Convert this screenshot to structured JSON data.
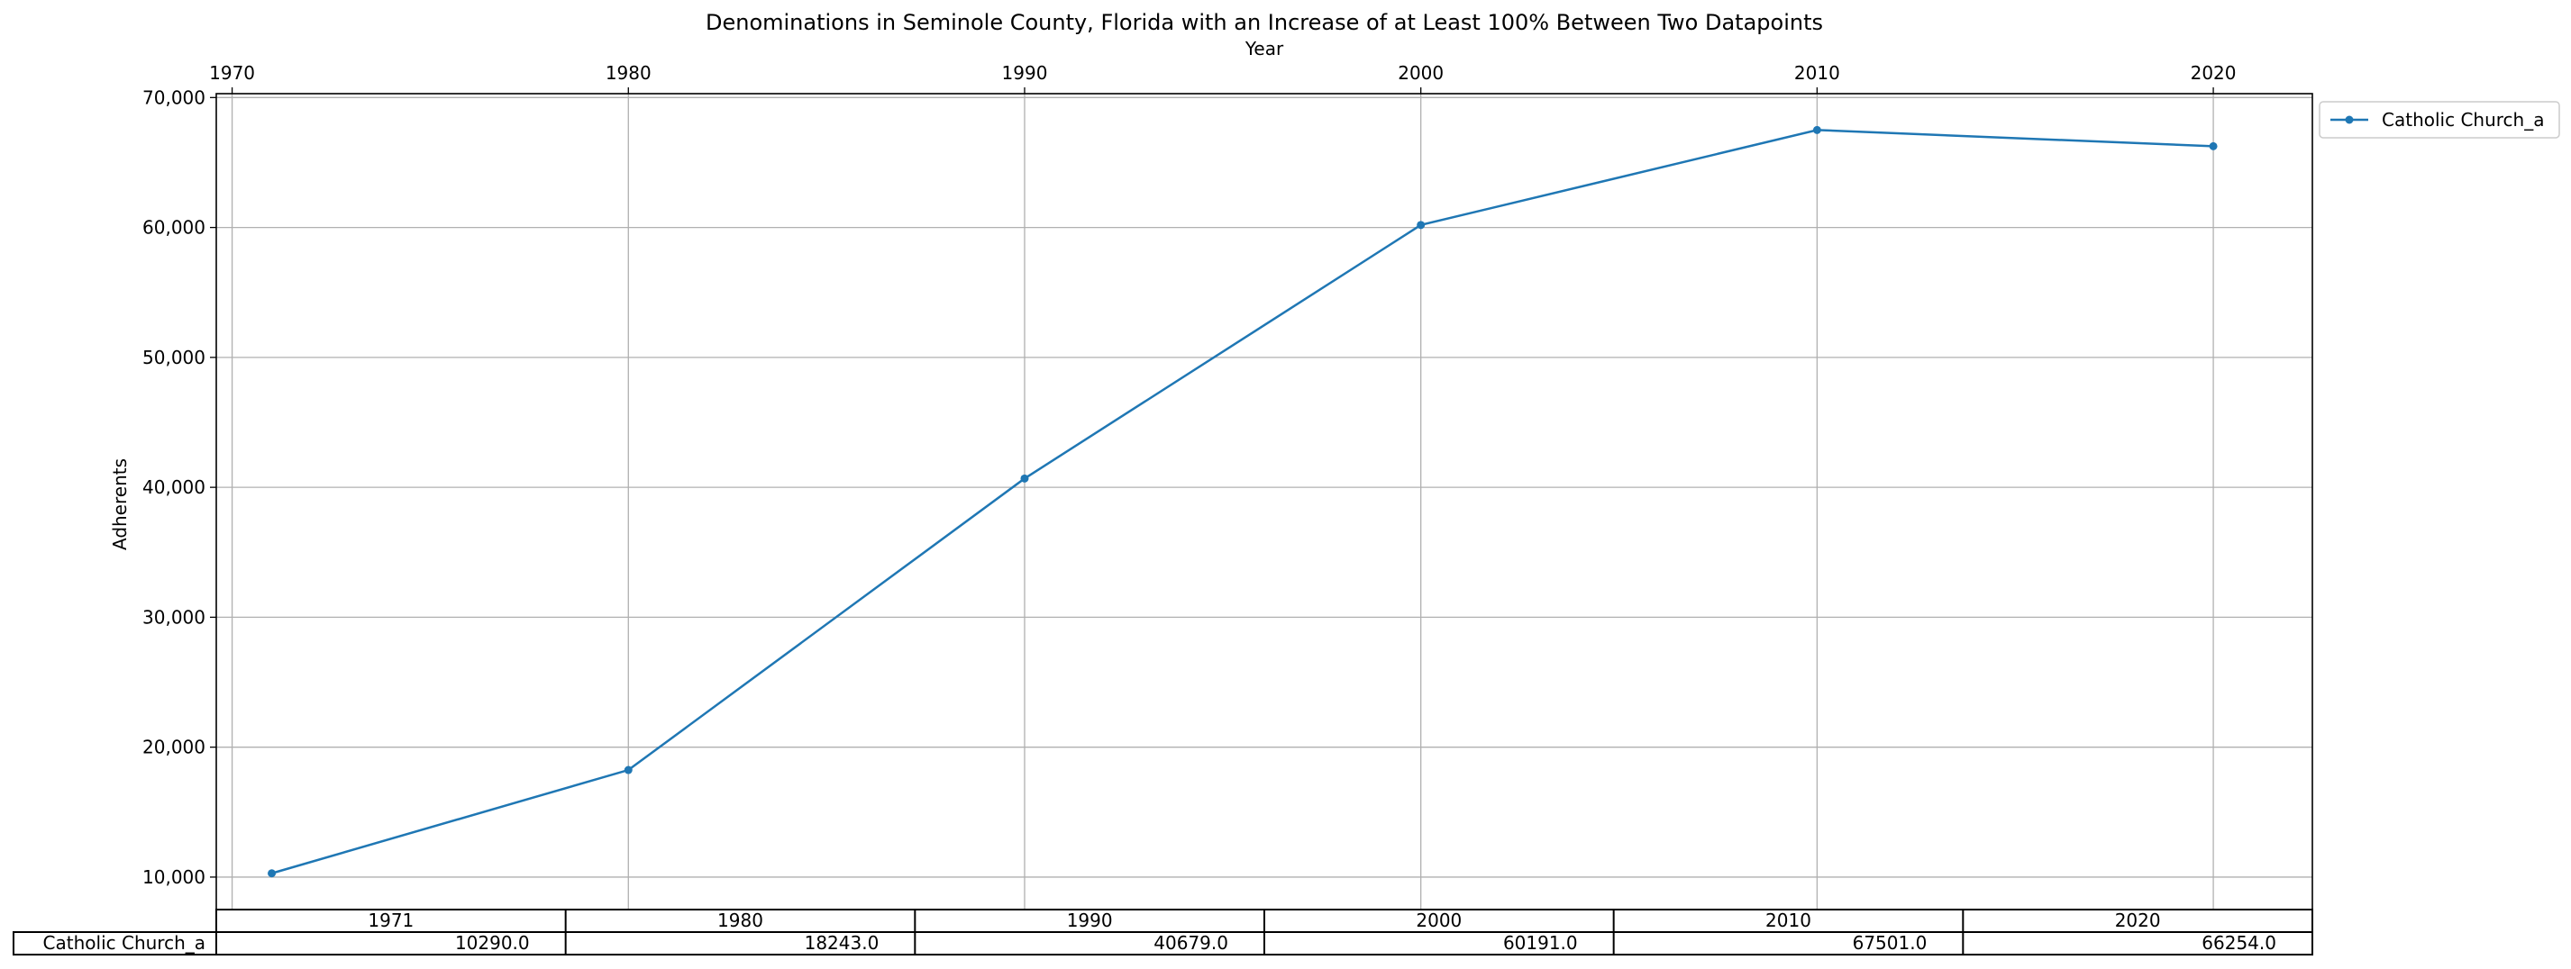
{
  "chart_data": {
    "type": "line",
    "title": "Denominations in Seminole County, Florida with an Increase of at Least 100% Between Two Datapoints",
    "xlabel": "Year",
    "ylabel": "Adherents",
    "x_ticks": [
      "1970",
      "1980",
      "1990",
      "2000",
      "2010",
      "2020"
    ],
    "y_ticks": [
      "10,000",
      "20,000",
      "30,000",
      "40,000",
      "50,000",
      "60,000",
      "70,000"
    ],
    "x": [
      1971,
      1980,
      1990,
      2000,
      2010,
      2020
    ],
    "xlim": [
      1969.6,
      2022.5
    ],
    "ylim": [
      7500,
      70300
    ],
    "grid": true,
    "legend_position": "outside-top-right",
    "series": [
      {
        "name": "Catholic Church_a",
        "values": [
          10290,
          18243,
          40679,
          60191,
          67501,
          66254
        ]
      }
    ],
    "table": {
      "header": [
        "1971",
        "1980",
        "1990",
        "2000",
        "2010",
        "2020"
      ],
      "row_label": "Catholic Church_a",
      "cells": [
        "10290.0",
        "18243.0",
        "40679.0",
        "60191.0",
        "67501.0",
        "66254.0"
      ]
    },
    "colors": {
      "series": "#1f77b4",
      "grid": "#b0b0b0"
    }
  }
}
